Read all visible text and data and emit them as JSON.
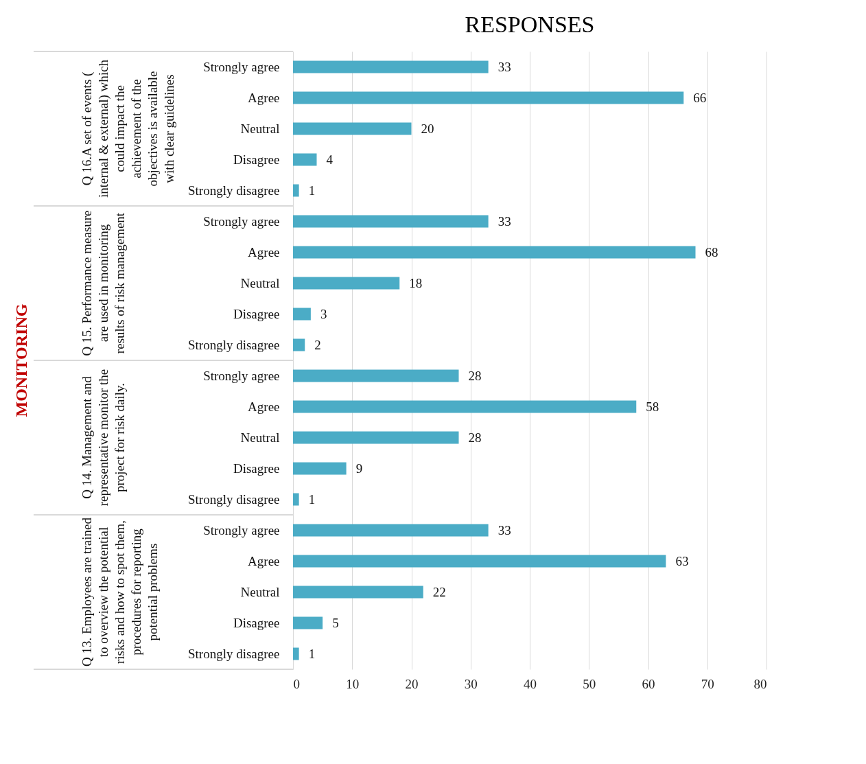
{
  "chart_data": {
    "type": "bar",
    "orientation": "horizontal",
    "title": "RESPONSES",
    "categories": [
      "Strongly agree",
      "Agree",
      "Neutral",
      "Disagree",
      "Strongly disagree",
      "Strongly agree",
      "Agree",
      "Neutral",
      "Disagree",
      "Strongly disagree",
      "Strongly agree",
      "Agree",
      "Neutral",
      "Disagree",
      "Strongly disagree",
      "Strongly agree",
      "Agree",
      "Neutral",
      "Disagree",
      "Strongly disagree"
    ],
    "values": [
      33,
      66,
      20,
      4,
      1,
      33,
      68,
      18,
      3,
      2,
      28,
      58,
      28,
      9,
      1,
      33,
      63,
      22,
      5,
      1
    ],
    "color": "#4bacc6",
    "data_labels": true,
    "xlim": [
      0,
      80
    ],
    "xticks": [
      0,
      10,
      20,
      30,
      40,
      50,
      60,
      70,
      80
    ],
    "grid": "x",
    "annotations": [
      "Q 16.A set of events ( internal & external) which could impact the achievement of the objectives is available with clear guidelines",
      "Q 15. Performance measure are used in monitoring results of risk management",
      "Q 14. Management and representative monitor the project for risk daily.",
      "Q 13. Employees are trained to overview the potential risks and how to spot them, procedures for reporting potential problems",
      "MONITORING"
    ]
  }
}
